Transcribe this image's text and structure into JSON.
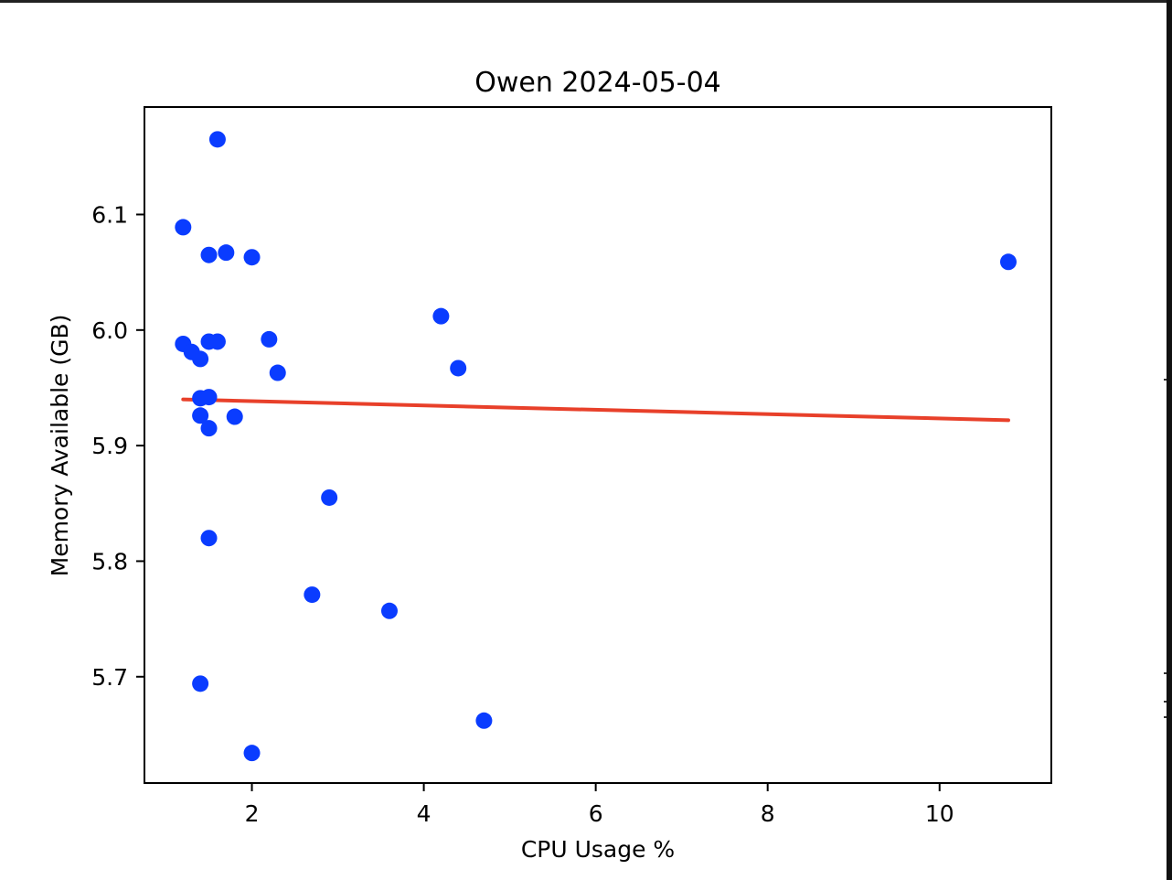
{
  "chart_data": {
    "type": "scatter",
    "title": "Owen 2024-05-04",
    "xlabel": "CPU Usage %",
    "ylabel": "Memory Available (GB)",
    "xlim": [
      0.75,
      11.3
    ],
    "ylim": [
      5.608,
      6.193
    ],
    "xticks": [
      2,
      4,
      6,
      8,
      10
    ],
    "xtick_labels": [
      "2",
      "4",
      "6",
      "8",
      "10"
    ],
    "yticks": [
      5.7,
      5.8,
      5.9,
      6.0,
      6.1
    ],
    "ytick_labels": [
      "5.7",
      "5.8",
      "5.9",
      "6.0",
      "6.1"
    ],
    "grid": false,
    "series": [
      {
        "type": "scatter",
        "color": "#0a3cff",
        "points": [
          {
            "x": 1.6,
            "y": 6.165
          },
          {
            "x": 1.2,
            "y": 6.089
          },
          {
            "x": 1.5,
            "y": 6.065
          },
          {
            "x": 1.7,
            "y": 6.067
          },
          {
            "x": 2.0,
            "y": 6.063
          },
          {
            "x": 10.8,
            "y": 6.059
          },
          {
            "x": 4.2,
            "y": 6.012
          },
          {
            "x": 1.2,
            "y": 5.988
          },
          {
            "x": 1.3,
            "y": 5.981
          },
          {
            "x": 1.4,
            "y": 5.975
          },
          {
            "x": 1.5,
            "y": 5.99
          },
          {
            "x": 1.6,
            "y": 5.99
          },
          {
            "x": 2.2,
            "y": 5.992
          },
          {
            "x": 2.3,
            "y": 5.963
          },
          {
            "x": 4.4,
            "y": 5.967
          },
          {
            "x": 1.4,
            "y": 5.941
          },
          {
            "x": 1.5,
            "y": 5.942
          },
          {
            "x": 1.4,
            "y": 5.926
          },
          {
            "x": 1.8,
            "y": 5.925
          },
          {
            "x": 1.5,
            "y": 5.915
          },
          {
            "x": 2.9,
            "y": 5.855
          },
          {
            "x": 1.5,
            "y": 5.82
          },
          {
            "x": 2.7,
            "y": 5.771
          },
          {
            "x": 3.6,
            "y": 5.757
          },
          {
            "x": 1.4,
            "y": 5.694
          },
          {
            "x": 4.7,
            "y": 5.662
          },
          {
            "x": 2.0,
            "y": 5.634
          }
        ]
      },
      {
        "type": "line",
        "color": "#e8402a",
        "x": [
          1.2,
          10.8
        ],
        "y": [
          5.94,
          5.922
        ]
      }
    ]
  }
}
